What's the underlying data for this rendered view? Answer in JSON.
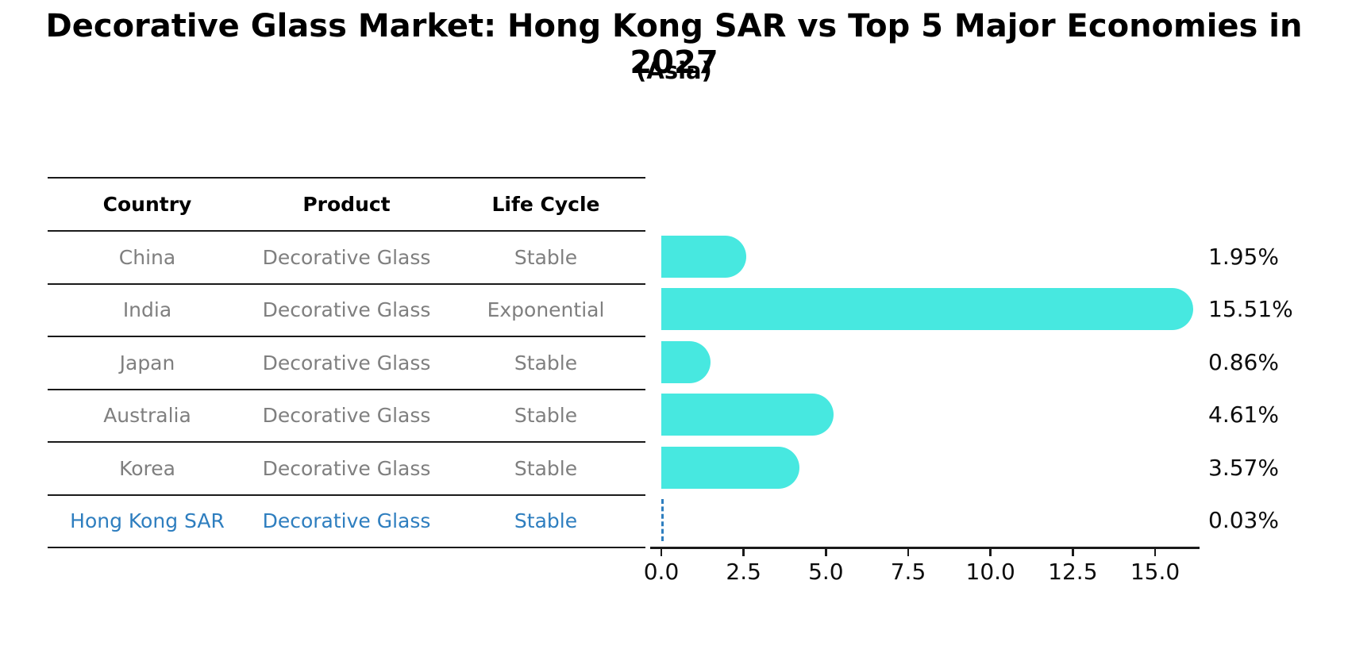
{
  "title": "Decorative Glass Market: Hong Kong SAR vs Top 5 Major Economies in 2027",
  "subtitle": "(Asia)",
  "table": {
    "headers": [
      "Country",
      "Product",
      "Life Cycle"
    ],
    "rows": [
      {
        "country": "China",
        "product": "Decorative Glass",
        "life_cycle": "Stable",
        "highlight": false
      },
      {
        "country": "India",
        "product": "Decorative Glass",
        "life_cycle": "Exponential",
        "highlight": false
      },
      {
        "country": "Japan",
        "product": "Decorative Glass",
        "life_cycle": "Stable",
        "highlight": false
      },
      {
        "country": "Australia",
        "product": "Decorative Glass",
        "life_cycle": "Stable",
        "highlight": false
      },
      {
        "country": "Korea",
        "product": "Decorative Glass",
        "life_cycle": "Stable",
        "highlight": false
      },
      {
        "country": "Hong Kong SAR",
        "product": "Decorative Glass",
        "life_cycle": "Stable",
        "highlight": true
      }
    ]
  },
  "chart_data": {
    "type": "bar",
    "orientation": "horizontal",
    "title": "Decorative Glass Market: Hong Kong SAR vs Top 5 Major Economies in 2027",
    "subtitle": "(Asia)",
    "categories": [
      "China",
      "India",
      "Japan",
      "Australia",
      "Korea",
      "Hong Kong SAR"
    ],
    "values": [
      1.95,
      15.51,
      0.86,
      4.61,
      3.57,
      0.03
    ],
    "value_labels": [
      "1.95%",
      "15.51%",
      "0.86%",
      "4.61%",
      "3.57%",
      "0.03%"
    ],
    "x_tick_labels": [
      "0.0",
      "2.5",
      "5.0",
      "7.5",
      "10.0",
      "12.5",
      "15.0"
    ],
    "x_tick_values": [
      0.0,
      2.5,
      5.0,
      7.5,
      10.0,
      12.5,
      15.0
    ],
    "xlim": [
      0,
      16.3
    ],
    "xlabel": "",
    "ylabel": "",
    "grid": false,
    "legend": false,
    "highlight_index": 5,
    "highlight_style": "dashed-outline",
    "bar_color": "#47e8e0",
    "highlight_color": "#2e7ebf",
    "axis_color": "#1a1a1a",
    "label_color": "#0d0d0d",
    "table_text_color": "#7f7f7f"
  }
}
